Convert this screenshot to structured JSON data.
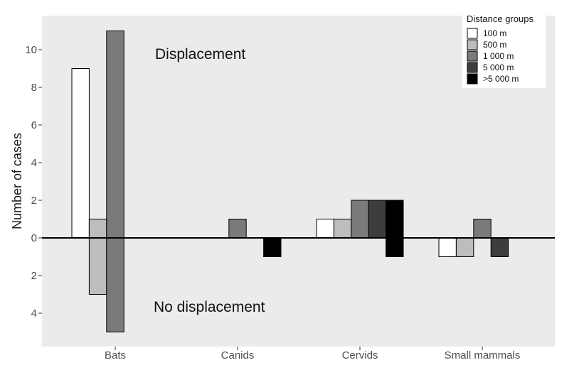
{
  "chart_data": {
    "type": "bar",
    "title": "",
    "xlabel": "",
    "ylabel": "Number of cases",
    "categories": [
      "Bats",
      "Canids",
      "Cervids",
      "Small mammals"
    ],
    "y_ticks_up": [
      "10",
      "8",
      "6",
      "4",
      "2",
      "0"
    ],
    "y_ticks_down": [
      "2",
      "4"
    ],
    "ylim": [
      -5.5,
      11.5
    ],
    "grid": false,
    "legend_position": "top-right",
    "legend_title": "Distance groups",
    "annotations": {
      "upper": "Displacement",
      "lower": "No displacement"
    },
    "series": [
      {
        "name": "100 m",
        "color": "#ffffff",
        "displacement": [
          9,
          0,
          1,
          0
        ],
        "no_displacement": [
          0,
          0,
          0,
          1
        ]
      },
      {
        "name": "500 m",
        "color": "#bdbdbd",
        "displacement": [
          1,
          0,
          1,
          0
        ],
        "no_displacement": [
          3,
          0,
          0,
          1
        ]
      },
      {
        "name": "1 000 m",
        "color": "#7a7a7a",
        "displacement": [
          11,
          1,
          2,
          1
        ],
        "no_displacement": [
          5,
          0,
          0,
          0
        ]
      },
      {
        "name": "5 000 m",
        "color": "#3d3d3d",
        "displacement": [
          0,
          0,
          2,
          0
        ],
        "no_displacement": [
          0,
          0,
          0,
          1
        ]
      },
      {
        "name": ">5 000 m",
        "color": "#000000",
        "displacement": [
          0,
          0,
          2,
          0
        ],
        "no_displacement": [
          0,
          1,
          1,
          0
        ]
      }
    ]
  }
}
